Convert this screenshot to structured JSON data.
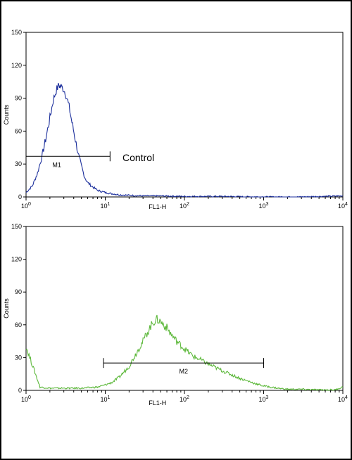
{
  "chart_data": [
    {
      "type": "line",
      "panel": "top",
      "title": "",
      "xlabel": "FL1-H",
      "ylabel": "Counts",
      "x_scale": "log",
      "xlim": [
        1,
        10000
      ],
      "ylim": [
        0,
        150
      ],
      "x_ticks": [
        {
          "base": "10",
          "exp": "0"
        },
        {
          "base": "10",
          "exp": "1"
        },
        {
          "base": "10",
          "exp": "2"
        },
        {
          "base": "10",
          "exp": "3"
        },
        {
          "base": "10",
          "exp": "4"
        }
      ],
      "y_ticks": [
        "0",
        "30",
        "60",
        "90",
        "120",
        "150"
      ],
      "grid": false,
      "line_color": "#1c2f9c",
      "series": [
        {
          "x": [
            1.0,
            1.2,
            1.4,
            1.6,
            1.8,
            2.0,
            2.2,
            2.4,
            2.6,
            2.8,
            3.0,
            3.2,
            3.5,
            3.8,
            4.2,
            4.6,
            5.0,
            5.5,
            6.0,
            7.0,
            8.0,
            9.0,
            10,
            12,
            15,
            20,
            30,
            50,
            100,
            300,
            1000,
            3000,
            10000
          ],
          "y": [
            4,
            10,
            22,
            38,
            55,
            72,
            88,
            97,
            102,
            100,
            98,
            93,
            82,
            68,
            52,
            38,
            28,
            18,
            13,
            9,
            6,
            5,
            4,
            3,
            2,
            1.5,
            1,
            1,
            0.5,
            0.5,
            0,
            0,
            1
          ]
        }
      ],
      "gates": [
        {
          "label": "M1",
          "x_start": 1.0,
          "x_end": 11.5,
          "y": 37
        }
      ],
      "annotation": "Control"
    },
    {
      "type": "line",
      "panel": "bottom",
      "title": "",
      "xlabel": "FL1-H",
      "ylabel": "Counts",
      "x_scale": "log",
      "xlim": [
        1,
        10000
      ],
      "ylim": [
        0,
        150
      ],
      "x_ticks": [
        {
          "base": "10",
          "exp": "0"
        },
        {
          "base": "10",
          "exp": "1"
        },
        {
          "base": "10",
          "exp": "2"
        },
        {
          "base": "10",
          "exp": "3"
        },
        {
          "base": "10",
          "exp": "4"
        }
      ],
      "y_ticks": [
        "0",
        "30",
        "60",
        "90",
        "120",
        "150"
      ],
      "grid": false,
      "line_color": "#5cb83a",
      "series": [
        {
          "x": [
            1.0,
            1.5,
            2,
            3,
            5,
            8,
            10,
            12,
            15,
            20,
            25,
            30,
            35,
            40,
            45,
            50,
            55,
            60,
            70,
            80,
            100,
            130,
            160,
            200,
            300,
            500,
            800,
            1000,
            1500,
            2000,
            3000,
            5000,
            8000,
            10000
          ],
          "y": [
            40,
            3,
            2,
            2,
            2,
            3,
            5,
            7,
            12,
            22,
            35,
            45,
            55,
            62,
            65,
            63,
            60,
            57,
            50,
            45,
            38,
            31,
            28,
            24,
            18,
            11,
            6,
            4,
            2,
            1,
            1,
            0.5,
            0.5,
            3
          ]
        }
      ],
      "gates": [
        {
          "label": "M2",
          "x_start": 9.5,
          "x_end": 1000,
          "y": 25
        }
      ]
    }
  ]
}
